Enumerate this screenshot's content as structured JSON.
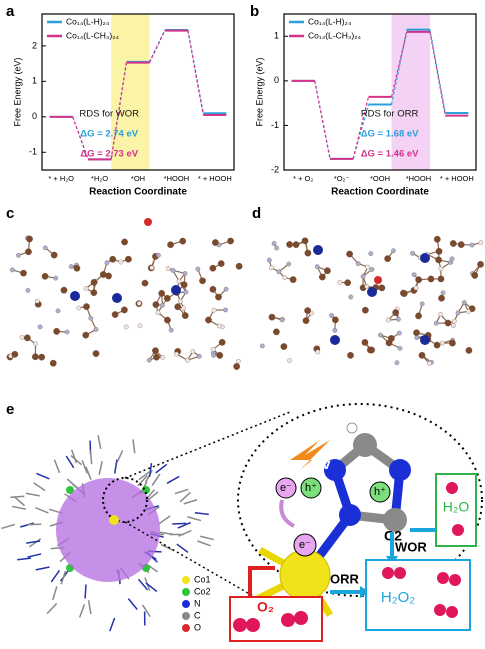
{
  "chart_data": [
    {
      "type": "step",
      "panel": "a",
      "ylabel": "Free Energy (eV)",
      "xlabel": "Reaction Coordinate",
      "categories": [
        "* + H₂O",
        "*H₂O",
        "*OH",
        "*HOOH",
        "* + HOOH"
      ],
      "series": [
        {
          "name": "Co₁₄(L-H)₂₄",
          "color": "#2a9fdc",
          "values": [
            0,
            -1.2,
            1.55,
            2.45,
            0.1
          ]
        },
        {
          "name": "Co₁₄(L-CH₃)₂₄",
          "color": "#d4338a",
          "values": [
            0,
            -1.2,
            1.53,
            2.43,
            0.05
          ]
        }
      ],
      "ylim": [
        -1.5,
        2.9
      ],
      "yticks": [
        -1,
        0,
        1,
        2
      ],
      "highlight_color": "#fbf3a6",
      "annotations": [
        {
          "text": "RDS for WOR",
          "color": "#111111"
        },
        {
          "text": "ΔG = 2.74 eV",
          "color": "#2a9fdc"
        },
        {
          "text": "ΔG = 2.73 eV",
          "color": "#d4338a"
        }
      ]
    },
    {
      "type": "step",
      "panel": "b",
      "ylabel": "Free Energy (eV)",
      "xlabel": "Reaction Coordinate",
      "categories": [
        "* + O₂",
        "*O₂⁻",
        "*OOH",
        "*HOOH",
        "* + HOOH"
      ],
      "series": [
        {
          "name": "Co₁₄(L-H)₂₄",
          "color": "#2a9fdc",
          "values": [
            0,
            -1.75,
            -0.53,
            1.15,
            -0.72
          ]
        },
        {
          "name": "Co₁₄(L-CH₃)₂₄",
          "color": "#d4338a",
          "values": [
            0,
            -1.75,
            -0.36,
            1.1,
            -0.78
          ]
        }
      ],
      "ylim": [
        -2,
        1.5
      ],
      "yticks": [
        -2,
        -1,
        0,
        1
      ],
      "highlight_color": "#f4d2f4",
      "annotations": [
        {
          "text": "RDS for ORR",
          "color": "#111111"
        },
        {
          "text": "ΔG = 1.68 eV",
          "color": "#2a9fdc"
        },
        {
          "text": "ΔG = 1.46 eV",
          "color": "#d4338a"
        }
      ]
    }
  ],
  "panel_c": {
    "label": "c"
  },
  "panel_d": {
    "label": "d"
  },
  "panel_e": {
    "label": "e",
    "hv": "hv",
    "electron": "e⁻",
    "hole": "h⁺",
    "site": "C2",
    "wor": "WOR",
    "orr": "ORR",
    "h2o": "H₂O",
    "h2o2": "H₂O₂",
    "o2": "O₂",
    "legend": [
      "Co1",
      "Co2",
      "N",
      "C",
      "O"
    ]
  }
}
